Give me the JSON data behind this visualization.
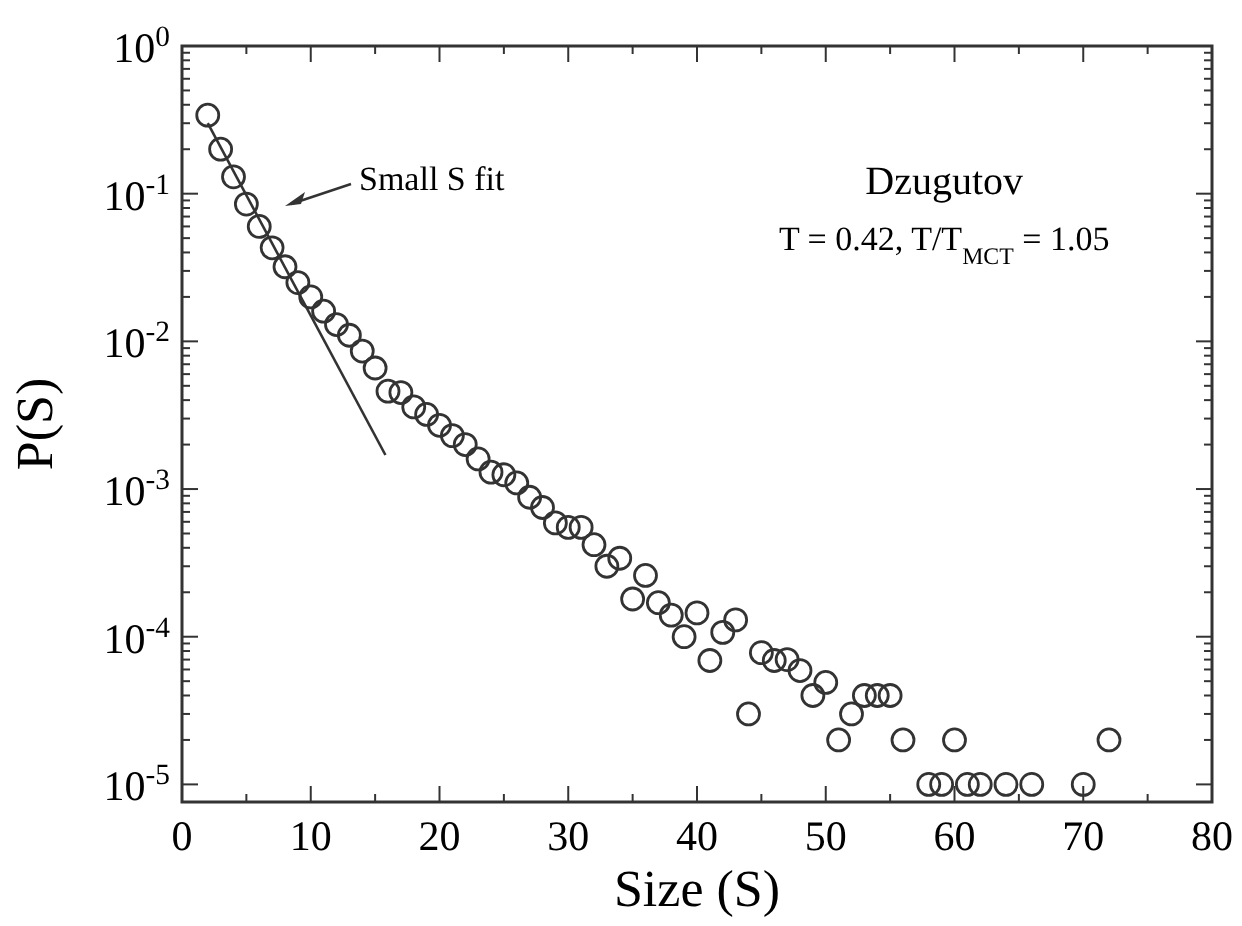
{
  "chart_data": {
    "type": "scatter",
    "xlabel": "Size (S)",
    "ylabel": "P(S)",
    "log": "y",
    "marker": "circle",
    "grid": false,
    "xlim": [
      0,
      80
    ],
    "ylim": [
      7.6e-06,
      1
    ],
    "xticks": [
      0,
      {
        "value": 5,
        "label": null
      },
      10,
      {
        "value": 15,
        "label": null
      },
      20,
      {
        "value": 25,
        "label": null
      },
      30,
      {
        "value": 35,
        "label": null
      },
      40,
      {
        "value": 45,
        "label": null
      },
      50,
      {
        "value": 55,
        "label": null
      },
      60,
      {
        "value": 65,
        "label": null
      },
      70,
      {
        "value": 75,
        "label": null
      },
      80
    ],
    "yticks": [
      {
        "value": 1e-05,
        "label": "10$^{-5}$"
      },
      {
        "value": 2e-05,
        "label": null
      },
      {
        "value": 3e-05,
        "label": null
      },
      {
        "value": 4e-05,
        "label": null
      },
      {
        "value": 5e-05,
        "label": null
      },
      {
        "value": 6e-05,
        "label": null
      },
      {
        "value": 7e-05,
        "label": null
      },
      {
        "value": 8e-05,
        "label": null
      },
      {
        "value": 9e-05,
        "label": null
      },
      {
        "value": 0.0001,
        "label": "10$^{-4}$"
      },
      {
        "value": 0.0002,
        "label": null
      },
      {
        "value": 0.0003,
        "label": null
      },
      {
        "value": 0.0004,
        "label": null
      },
      {
        "value": 0.0005,
        "label": null
      },
      {
        "value": 0.0006,
        "label": null
      },
      {
        "value": 0.0007,
        "label": null
      },
      {
        "value": 0.0008,
        "label": null
      },
      {
        "value": 0.0009,
        "label": null
      },
      {
        "value": 0.001,
        "label": "10$^{-3}$"
      },
      {
        "value": 0.002,
        "label": null
      },
      {
        "value": 0.003,
        "label": null
      },
      {
        "value": 0.004,
        "label": null
      },
      {
        "value": 0.005,
        "label": null
      },
      {
        "value": 0.006,
        "label": null
      },
      {
        "value": 0.007,
        "label": null
      },
      {
        "value": 0.008,
        "label": null
      },
      {
        "value": 0.009,
        "label": null
      },
      {
        "value": 0.01,
        "label": "10$^{-2}$"
      },
      {
        "value": 0.02,
        "label": null
      },
      {
        "value": 0.03,
        "label": null
      },
      {
        "value": 0.04,
        "label": null
      },
      {
        "value": 0.05,
        "label": null
      },
      {
        "value": 0.06,
        "label": null
      },
      {
        "value": 0.07,
        "label": null
      },
      {
        "value": 0.08,
        "label": null
      },
      {
        "value": 0.09,
        "label": null
      },
      {
        "value": 0.1,
        "label": "10$^{-1}$"
      },
      {
        "value": 0.2,
        "label": null
      },
      {
        "value": 0.3,
        "label": null
      },
      {
        "value": 0.4,
        "label": null
      },
      {
        "value": 0.5,
        "label": null
      },
      {
        "value": 0.6,
        "label": null
      },
      {
        "value": 0.7,
        "label": null
      },
      {
        "value": 0.8,
        "label": null
      },
      {
        "value": 0.9,
        "label": null
      },
      {
        "value": 1,
        "label": "10$^{0}$"
      }
    ],
    "series": [
      {
        "color": "#333333",
        "x": [
          2,
          3,
          4,
          5,
          6,
          7,
          8,
          9,
          10,
          11,
          12,
          13,
          14,
          15,
          16,
          17,
          18,
          19,
          20,
          21,
          22,
          23,
          24,
          25,
          26,
          27,
          28,
          29,
          30,
          31,
          32,
          33,
          34,
          35,
          36,
          37,
          38,
          39,
          40,
          41,
          42,
          43,
          44,
          45,
          46,
          47,
          48,
          49,
          50,
          51,
          52,
          53,
          54,
          55,
          56,
          58,
          59,
          60,
          61,
          62,
          64,
          66,
          70,
          72
        ],
        "values": [
          0.34,
          0.2,
          0.13,
          0.085,
          0.06,
          0.043,
          0.032,
          0.025,
          0.02,
          0.016,
          0.013,
          0.011,
          0.0086,
          0.0066,
          0.0046,
          0.0045,
          0.0036,
          0.0032,
          0.0027,
          0.0023,
          0.002,
          0.0016,
          0.0013,
          0.00125,
          0.0011,
          0.00088,
          0.00075,
          0.00059,
          0.00055,
          0.00055,
          0.00042,
          0.0003,
          0.00034,
          0.00018,
          0.00026,
          0.00017,
          0.00014,
          0.0001,
          0.000145,
          6.9e-05,
          0.000107,
          0.00013,
          3e-05,
          7.8e-05,
          6.9e-05,
          7e-05,
          5.9e-05,
          4e-05,
          4.9e-05,
          2e-05,
          3e-05,
          4e-05,
          4e-05,
          4e-05,
          2e-05,
          1e-05,
          1e-05,
          2e-05,
          1e-05,
          1e-05,
          1e-05,
          1e-05,
          1e-05,
          2e-05
        ]
      },
      {
        "type": "line",
        "color": "#333333",
        "marker": "none",
        "x": [
          2,
          15.8
        ],
        "values": [
          0.3,
          0.0017
        ]
      }
    ],
    "annotations": [
      "Small S fit",
      "Dzugutov",
      "T = 0.42, T/T$_{MCT}$ = 1.05"
    ]
  }
}
